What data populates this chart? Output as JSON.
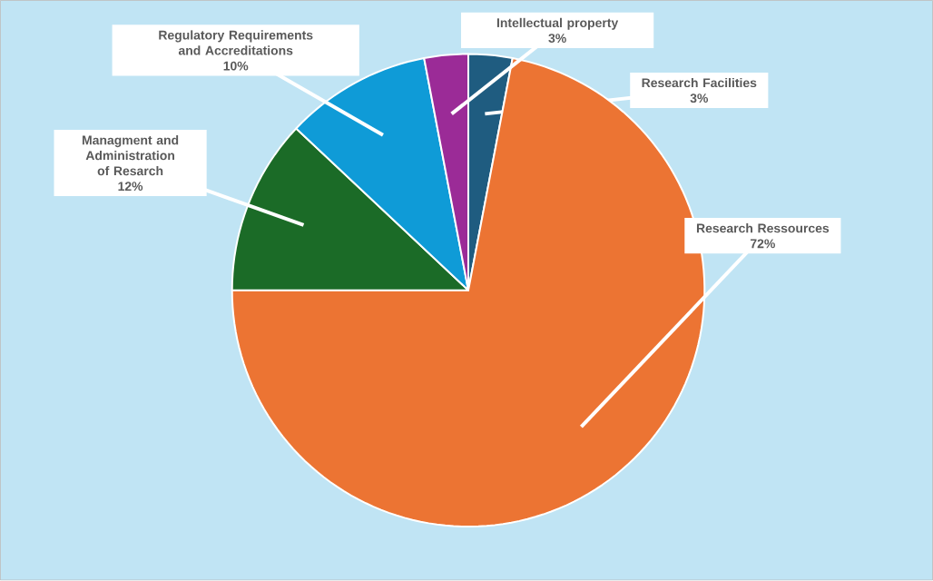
{
  "chart_data": {
    "type": "pie",
    "categories": [
      "Research Facilities",
      "Research Ressources",
      "Managment and Administration of Resarch",
      "Regulatory Requirements and Accreditations",
      "Intellectual property"
    ],
    "values": [
      3,
      72,
      12,
      10,
      3
    ],
    "value_labels": [
      "3%",
      "72%",
      "12%",
      "10%",
      "3%"
    ],
    "colors": [
      "#1f5c80",
      "#ec7433",
      "#1b6b27",
      "#0f9bd7",
      "#9b2b97"
    ]
  }
}
